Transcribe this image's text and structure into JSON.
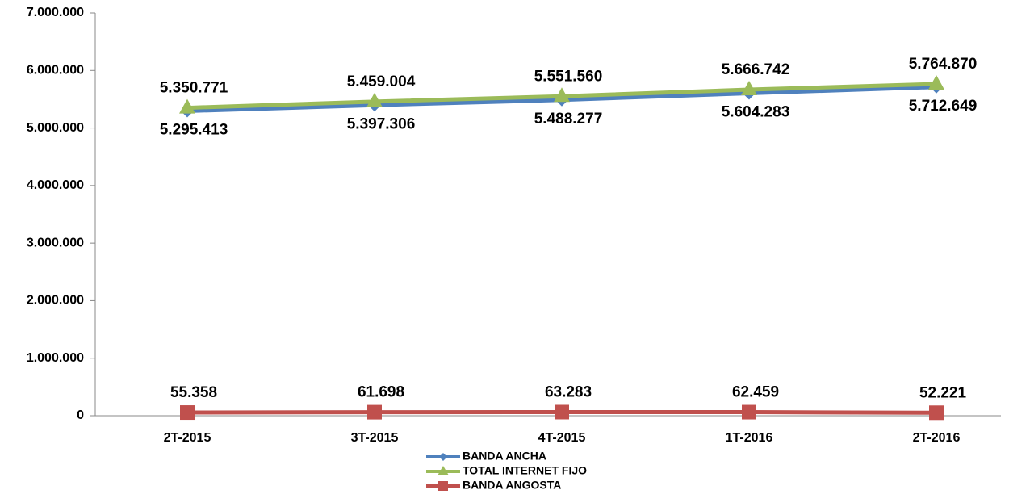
{
  "chart_data": {
    "type": "line",
    "categories": [
      "2T-2015",
      "3T-2015",
      "4T-2015",
      "1T-2016",
      "2T-2016"
    ],
    "series": [
      {
        "name": "BANDA ANCHA",
        "color": "#4f81bd",
        "marker": "diamond",
        "label_position": "below",
        "values": [
          5295413,
          5397306,
          5488277,
          5604283,
          5712649
        ],
        "value_labels": [
          "5.295.413",
          "5.397.306",
          "5.488.277",
          "5.604.283",
          "5.712.649"
        ]
      },
      {
        "name": "TOTAL INTERNET FIJO",
        "color": "#9bbb59",
        "marker": "triangle",
        "label_position": "above",
        "values": [
          5350771,
          5459004,
          5551560,
          5666742,
          5764870
        ],
        "value_labels": [
          "5.350.771",
          "5.459.004",
          "5.551.560",
          "5.666.742",
          "5.764.870"
        ]
      },
      {
        "name": "BANDA ANGOSTA",
        "color": "#c0504d",
        "marker": "square",
        "label_position": "above",
        "values": [
          55358,
          61698,
          63283,
          62459,
          52221
        ],
        "value_labels": [
          "55.358",
          "61.698",
          "63.283",
          "62.459",
          "52.221"
        ]
      }
    ],
    "ylim": [
      0,
      7000000
    ],
    "yticks": [
      {
        "value": 0,
        "label": "0"
      },
      {
        "value": 1000000,
        "label": "1.000.000"
      },
      {
        "value": 2000000,
        "label": "2.000.000"
      },
      {
        "value": 3000000,
        "label": "3.000.000"
      },
      {
        "value": 4000000,
        "label": "4.000.000"
      },
      {
        "value": 5000000,
        "label": "5.000.000"
      },
      {
        "value": 6000000,
        "label": "6.000.000"
      },
      {
        "value": 7000000,
        "label": "7.000.000"
      }
    ],
    "grid": false,
    "legend": "bottom"
  }
}
